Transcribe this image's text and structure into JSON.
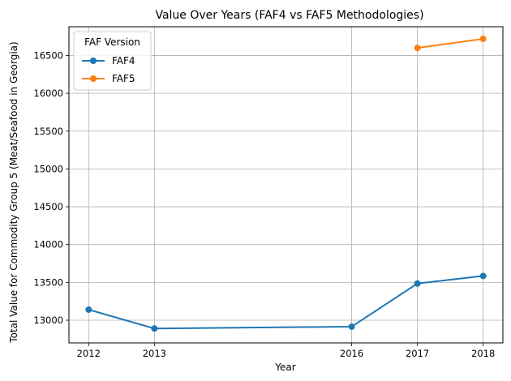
{
  "chart_data": {
    "type": "line",
    "title": "Value Over Years (FAF4 vs FAF5 Methodologies)",
    "xlabel": "Year",
    "ylabel": "Total Value for Commodity Group 5 (Meat/Seafood in Georgia)",
    "x_ticks": [
      2012,
      2013,
      2016,
      2017,
      2018
    ],
    "y_ticks": [
      13000,
      13500,
      14000,
      14500,
      15000,
      15500,
      16000,
      16500
    ],
    "xlim": [
      2011.7,
      2018.3
    ],
    "ylim": [
      12700,
      16880
    ],
    "grid": true,
    "legend": {
      "title": "FAF Version",
      "placement": "top-left"
    },
    "series": [
      {
        "name": "FAF4",
        "color": "#1f77b4",
        "x": [
          2012,
          2013,
          2016,
          2017,
          2018
        ],
        "y": [
          13140,
          12890,
          12915,
          13485,
          13585
        ]
      },
      {
        "name": "FAF5",
        "color": "#ff7f0e",
        "x": [
          2017,
          2018
        ],
        "y": [
          16600,
          16720
        ]
      }
    ]
  }
}
